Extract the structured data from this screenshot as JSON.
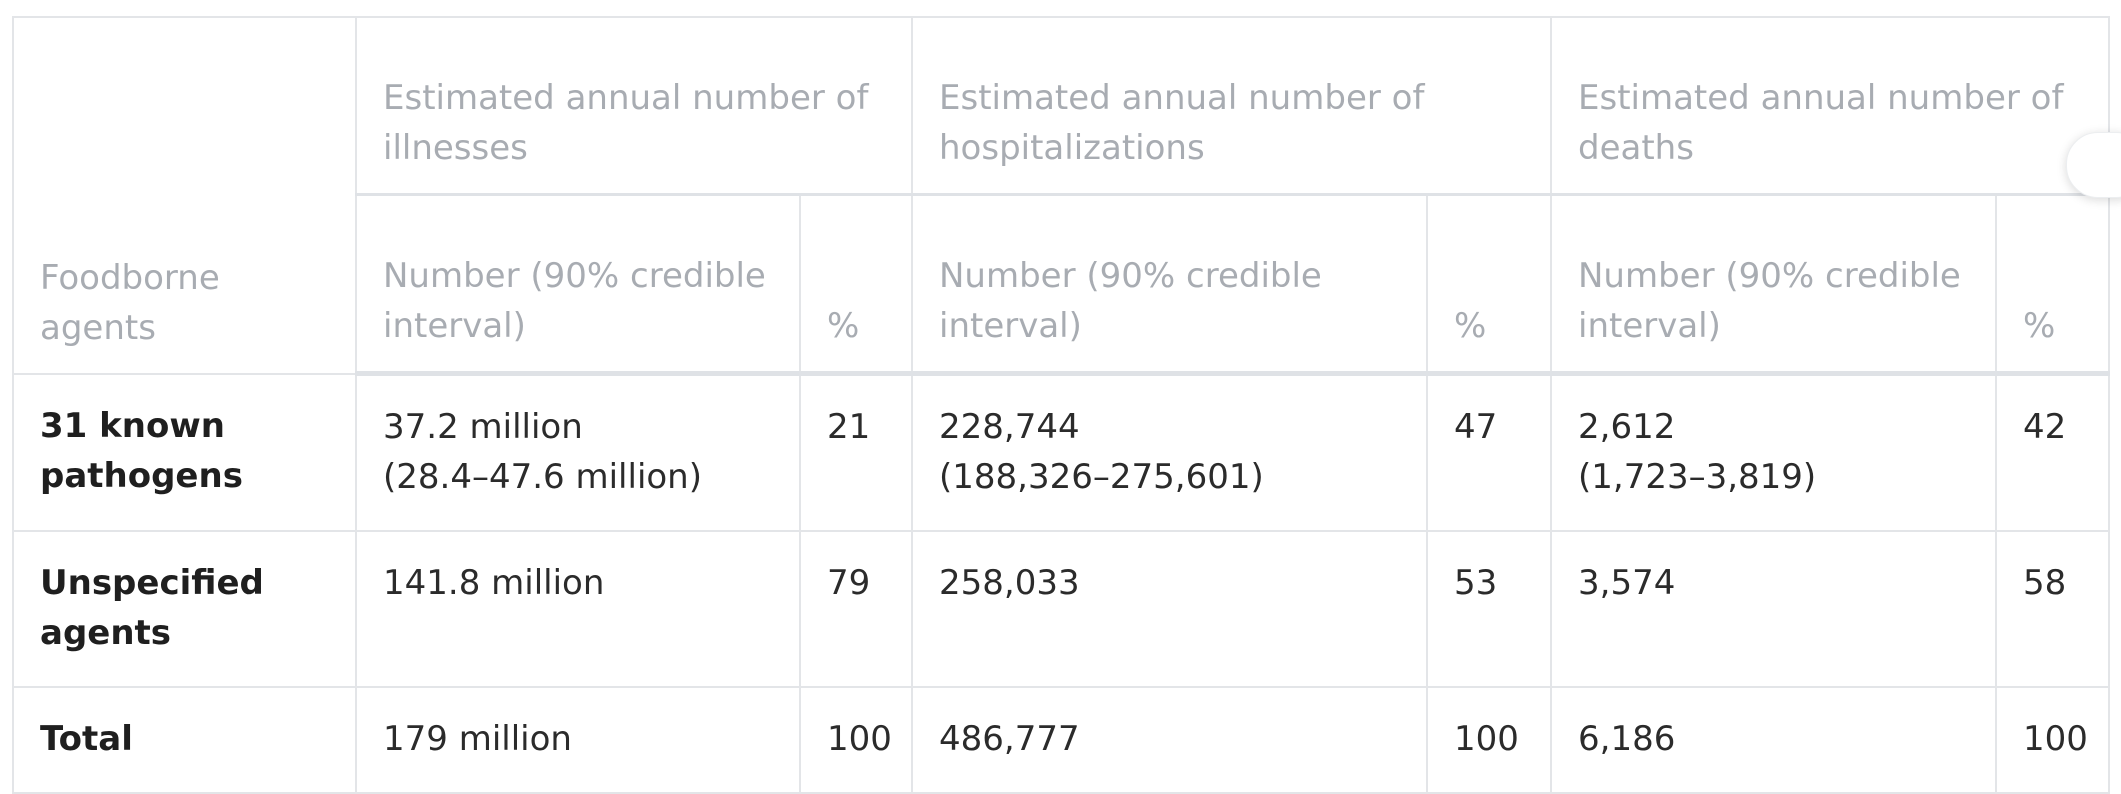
{
  "table": {
    "header": {
      "agents_label": "Foodborne agents",
      "groups": [
        "Estimated annual number of illnesses",
        "Estimated annual number of hospitalizations",
        "Estimated annual number of deaths"
      ],
      "sub_number": "Number (90% credible interval)",
      "sub_pct": "%"
    },
    "rows": [
      {
        "agent": "31 known pathogens",
        "illnesses": "37.2 million",
        "illnesses_ci": "(28.4–47.6 million)",
        "illnesses_pct": "21",
        "hosp": "228,744",
        "hosp_ci": "(188,326–275,601)",
        "hosp_pct": "47",
        "deaths": "2,612",
        "deaths_ci": "(1,723–3,819)",
        "deaths_pct": "42"
      },
      {
        "agent": "Unspecified agents",
        "illnesses": "141.8 million",
        "illnesses_pct": "79",
        "hosp": "258,033",
        "hosp_pct": "53",
        "deaths": "3,574",
        "deaths_pct": "58"
      },
      {
        "agent": "Total",
        "illnesses": "179 million",
        "illnesses_pct": "100",
        "hosp": "486,777",
        "hosp_pct": "100",
        "deaths": "6,186",
        "deaths_pct": "100"
      }
    ]
  }
}
